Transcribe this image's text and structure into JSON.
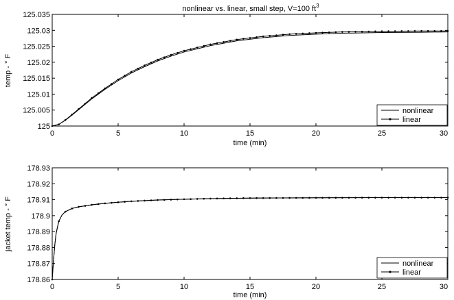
{
  "chart_data": [
    {
      "type": "line",
      "title": "nonlinear vs. linear, small step, V=100 ft",
      "title_superscript": "3",
      "xlabel": "time (min)",
      "ylabel": "temp - ° F",
      "xlim": [
        0,
        30
      ],
      "ylim": [
        125,
        125.035
      ],
      "xticks": [
        "0",
        "5",
        "10",
        "15",
        "20",
        "25",
        "30"
      ],
      "yticks": [
        "125",
        "125.005",
        "125.01",
        "125.015",
        "125.02",
        "125.025",
        "125.03",
        "125.035"
      ],
      "grid": false,
      "legend_position": "lower-right",
      "series": [
        {
          "name": "nonlinear",
          "style": "solid",
          "color": "#000000",
          "x": [
            0,
            0.5,
            1,
            1.5,
            2,
            3,
            4,
            5,
            6,
            7,
            8,
            9,
            10,
            12,
            14,
            16,
            18,
            20,
            22,
            25,
            28,
            30
          ],
          "y": [
            125,
            125.0005,
            125.0018,
            125.0034,
            125.0051,
            125.0085,
            125.0115,
            125.0142,
            125.0166,
            125.0186,
            125.0204,
            125.0219,
            125.0232,
            125.0252,
            125.0267,
            125.0277,
            125.0284,
            125.0288,
            125.0291,
            125.0293,
            125.0294,
            125.0295
          ]
        },
        {
          "name": "linear",
          "style": "solid-with-dot-markers",
          "color": "#000000",
          "x": [
            0,
            0.5,
            1,
            1.5,
            2,
            3,
            4,
            5,
            6,
            7,
            8,
            9,
            10,
            12,
            14,
            16,
            18,
            20,
            22,
            25,
            28,
            30
          ],
          "y": [
            125,
            125.0005,
            125.0019,
            125.0036,
            125.0053,
            125.0088,
            125.0118,
            125.0146,
            125.017,
            125.019,
            125.0208,
            125.0223,
            125.0236,
            125.0256,
            125.0271,
            125.0281,
            125.0288,
            125.0292,
            125.0295,
            125.0297,
            125.0298,
            125.0298
          ]
        }
      ]
    },
    {
      "type": "line",
      "title": "",
      "xlabel": "time (min)",
      "ylabel": "jacket temp - ° F",
      "xlim": [
        0,
        30
      ],
      "ylim": [
        178.86,
        178.93
      ],
      "xticks": [
        "0",
        "5",
        "10",
        "15",
        "20",
        "25",
        "30"
      ],
      "yticks": [
        "178.86",
        "178.87",
        "178.88",
        "178.89",
        "178.9",
        "178.91",
        "178.92",
        "178.93"
      ],
      "grid": false,
      "legend_position": "lower-right",
      "series": [
        {
          "name": "nonlinear",
          "style": "solid",
          "color": "#000000",
          "x": [
            0,
            0.1,
            0.2,
            0.3,
            0.5,
            0.75,
            1,
            1.5,
            2,
            3,
            4,
            5,
            6,
            8,
            10,
            12,
            15,
            20,
            25,
            30
          ],
          "y": [
            178.86,
            178.872,
            178.882,
            178.889,
            178.8965,
            178.9005,
            178.9025,
            178.9045,
            178.9055,
            178.9068,
            178.9077,
            178.9084,
            178.909,
            178.9098,
            178.9103,
            178.9107,
            178.911,
            178.9112,
            178.9113,
            178.9113
          ]
        },
        {
          "name": "linear",
          "style": "solid-with-dot-markers",
          "color": "#000000",
          "x": [
            0,
            0.1,
            0.2,
            0.3,
            0.5,
            0.75,
            1,
            1.5,
            2,
            3,
            4,
            5,
            6,
            8,
            10,
            12,
            15,
            20,
            25,
            30
          ],
          "y": [
            178.86,
            178.872,
            178.882,
            178.889,
            178.8965,
            178.9005,
            178.9025,
            178.9045,
            178.9055,
            178.9068,
            178.9077,
            178.9084,
            178.909,
            178.9098,
            178.9103,
            178.9107,
            178.911,
            178.9112,
            178.9113,
            178.9113
          ]
        }
      ]
    }
  ]
}
